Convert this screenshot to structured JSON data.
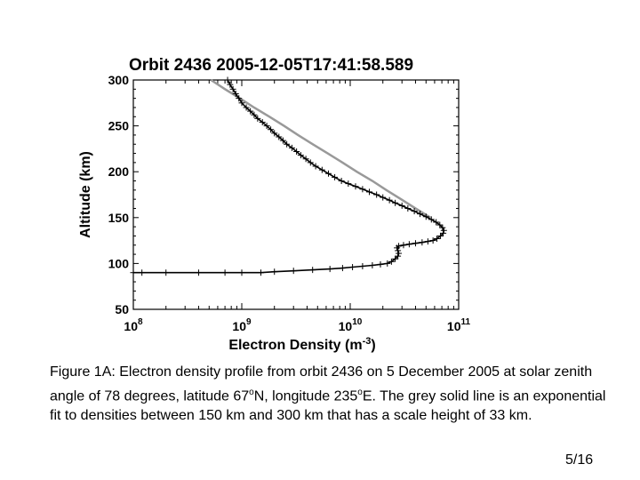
{
  "chart_data": {
    "type": "scatter",
    "title": "Orbit 2436  2005-12-05T17:41:58.589",
    "xlabel": "Electron Density (m",
    "xlabel_sup": "-3",
    "xlabel_end": ")",
    "ylabel": "Altitude (km)",
    "x_scale": "log",
    "xlim": [
      100000000.0,
      100000000000.0
    ],
    "ylim": [
      50,
      300
    ],
    "x_ticks": [
      {
        "base": "10",
        "exp": "8",
        "value": 100000000.0
      },
      {
        "base": "10",
        "exp": "9",
        "value": 1000000000.0
      },
      {
        "base": "10",
        "exp": "10",
        "value": 10000000000.0
      },
      {
        "base": "10",
        "exp": "11",
        "value": 100000000000.0
      }
    ],
    "y_ticks": [
      "50",
      "100",
      "150",
      "200",
      "250",
      "300"
    ],
    "grid": false,
    "series": [
      {
        "color": "#000000",
        "marker": "+",
        "points": [
          [
            100000000.0,
            90
          ],
          [
            120000000.0,
            90
          ],
          [
            200000000.0,
            90
          ],
          [
            400000000.0,
            90
          ],
          [
            700000000.0,
            90
          ],
          [
            1000000000.0,
            90
          ],
          [
            1500000000.0,
            90
          ],
          [
            2000000000.0,
            91
          ],
          [
            3000000000.0,
            92
          ],
          [
            4500000000.0,
            93
          ],
          [
            6500000000.0,
            94
          ],
          [
            8500000000.0,
            95
          ],
          [
            10500000000.0,
            96
          ],
          [
            13000000000.0,
            97
          ],
          [
            16000000000.0,
            98
          ],
          [
            19000000000.0,
            99
          ],
          [
            22000000000.0,
            100
          ],
          [
            24000000000.0,
            102
          ],
          [
            26000000000.0,
            105
          ],
          [
            27500000000.0,
            108
          ],
          [
            28000000000.0,
            111
          ],
          [
            27500000000.0,
            114
          ],
          [
            27000000000.0,
            117
          ],
          [
            28000000000.0,
            119
          ],
          [
            31000000000.0,
            120
          ],
          [
            35000000000.0,
            121
          ],
          [
            40000000000.0,
            122
          ],
          [
            46000000000.0,
            123
          ],
          [
            52000000000.0,
            124
          ],
          [
            58000000000.0,
            125
          ],
          [
            63000000000.0,
            127
          ],
          [
            68000000000.0,
            130
          ],
          [
            72000000000.0,
            133
          ],
          [
            73000000000.0,
            136
          ],
          [
            71000000000.0,
            139
          ],
          [
            67000000000.0,
            142
          ],
          [
            62000000000.0,
            145
          ],
          [
            56000000000.0,
            148
          ],
          [
            50000000000.0,
            151
          ],
          [
            44000000000.0,
            154
          ],
          [
            39000000000.0,
            157
          ],
          [
            34000000000.0,
            160
          ],
          [
            30000000000.0,
            163
          ],
          [
            26000000000.0,
            166
          ],
          [
            23000000000.0,
            169
          ],
          [
            20000000000.0,
            172
          ],
          [
            17500000000.0,
            175
          ],
          [
            15000000000.0,
            178
          ],
          [
            13000000000.0,
            181
          ],
          [
            11200000000.0,
            184
          ],
          [
            9600000000.0,
            187
          ],
          [
            8300000000.0,
            190
          ],
          [
            7200000000.0,
            194
          ],
          [
            6300000000.0,
            198
          ],
          [
            5500000000.0,
            202
          ],
          [
            4800000000.0,
            206
          ],
          [
            4300000000.0,
            210
          ],
          [
            3900000000.0,
            214
          ],
          [
            3500000000.0,
            218
          ],
          [
            3200000000.0,
            222
          ],
          [
            2900000000.0,
            226
          ],
          [
            2600000000.0,
            230
          ],
          [
            2400000000.0,
            234
          ],
          [
            2200000000.0,
            238
          ],
          [
            2000000000.0,
            242
          ],
          [
            1850000000.0,
            246
          ],
          [
            1700000000.0,
            250
          ],
          [
            1550000000.0,
            254
          ],
          [
            1400000000.0,
            258
          ],
          [
            1300000000.0,
            262
          ],
          [
            1200000000.0,
            266
          ],
          [
            1100000000.0,
            270
          ],
          [
            1000000000.0,
            275
          ],
          [
            940000000.0,
            280
          ],
          [
            880000000.0,
            285
          ],
          [
            830000000.0,
            290
          ],
          [
            780000000.0,
            295
          ],
          [
            740000000.0,
            300
          ]
        ]
      },
      {
        "color": "#999999",
        "line": "solid",
        "points": [
          [
            55000000000.0,
            150
          ],
          [
            40000000000.0,
            160
          ],
          [
            29500000000.0,
            170
          ],
          [
            21500000000.0,
            180
          ],
          [
            16000000000.0,
            190
          ],
          [
            11500000000.0,
            200
          ],
          [
            8500000000.0,
            210
          ],
          [
            6200000000.0,
            220
          ],
          [
            4500000000.0,
            230
          ],
          [
            3300000000.0,
            240
          ],
          [
            2450000000.0,
            250
          ],
          [
            1800000000.0,
            260
          ],
          [
            1300000000.0,
            270
          ],
          [
            960000000.0,
            280
          ],
          [
            700000000.0,
            290
          ],
          [
            520000000.0,
            300
          ]
        ]
      }
    ]
  },
  "caption": {
    "prefix": "Figure 1A: Electron density profile from orbit 2436 on 5 December 2005 at solar zenith angle of 78 degrees, latitude 67",
    "deg1": "o",
    "mid": "N, longitude 235",
    "deg2": "o",
    "suffix": "E. The grey solid line is an exponential fit to densities between 150 km and 300 km that has a scale height of 33 km."
  },
  "page_number": "5/16"
}
